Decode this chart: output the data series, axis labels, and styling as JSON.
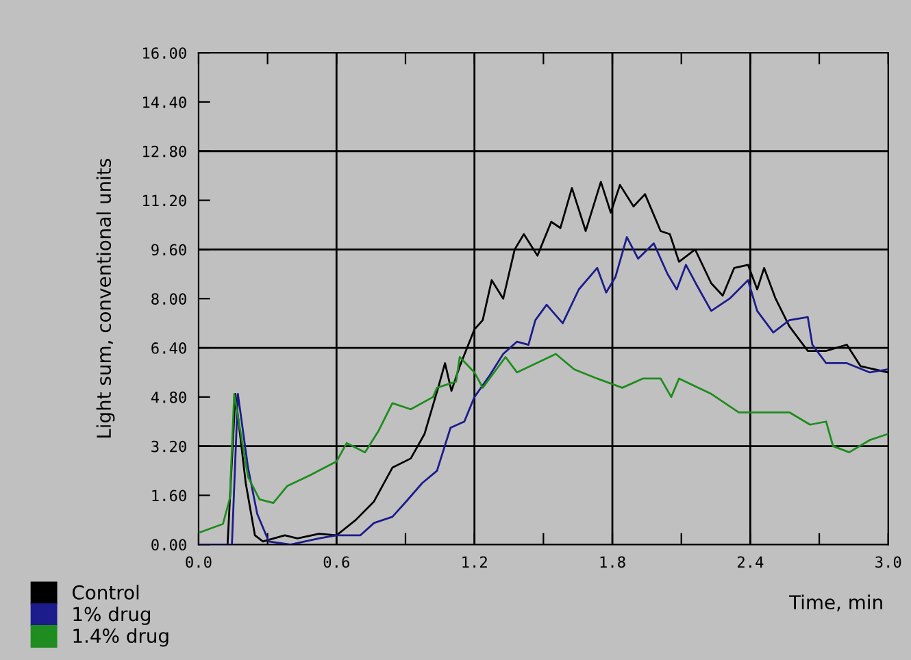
{
  "chart_data": {
    "type": "line",
    "xlabel": "Time, min",
    "ylabel": "Light sum, conventional units",
    "xlim": [
      0,
      3
    ],
    "ylim": [
      0,
      16
    ],
    "xticks": [
      {
        "value": 0,
        "label": "0.0"
      },
      {
        "value": 0.3,
        "label": null
      },
      {
        "value": 0.6,
        "label": "0.6"
      },
      {
        "value": 0.9,
        "label": null
      },
      {
        "value": 1.2,
        "label": "1.2"
      },
      {
        "value": 1.5,
        "label": null
      },
      {
        "value": 1.8,
        "label": "1.8"
      },
      {
        "value": 2.1,
        "label": null
      },
      {
        "value": 2.4,
        "label": "2.4"
      },
      {
        "value": 2.7,
        "label": null
      },
      {
        "value": 3.0,
        "label": "3.0"
      }
    ],
    "yticks": [
      {
        "value": 0,
        "label": "0.00"
      },
      {
        "value": 1.6,
        "label": "1.60"
      },
      {
        "value": 3.2,
        "label": "3.20"
      },
      {
        "value": 4.8,
        "label": "4.80"
      },
      {
        "value": 6.4,
        "label": "6.40"
      },
      {
        "value": 8.0,
        "label": "8.00"
      },
      {
        "value": 9.6,
        "label": "9.60"
      },
      {
        "value": 11.2,
        "label": "11.20"
      },
      {
        "value": 12.8,
        "label": "12.80"
      },
      {
        "value": 14.4,
        "label": "14.40"
      },
      {
        "value": 16.0,
        "label": "16.00"
      }
    ],
    "ref_lines": [
      {
        "axis": "x",
        "value": 0.6,
        "color": "#000000"
      },
      {
        "axis": "x",
        "value": 1.2,
        "color": "#000000"
      },
      {
        "axis": "x",
        "value": 1.8,
        "color": "#000000"
      },
      {
        "axis": "x",
        "value": 2.4,
        "color": "#000000"
      },
      {
        "axis": "y",
        "value": 3.2,
        "color": "#000000"
      },
      {
        "axis": "y",
        "value": 6.4,
        "color": "#000000"
      },
      {
        "axis": "y",
        "value": 9.6,
        "color": "#000000"
      },
      {
        "axis": "y",
        "value": 12.8,
        "color": "#000000"
      }
    ],
    "legend": "bottom left",
    "grid": false,
    "marker": "none",
    "line_style": "solid",
    "series": [
      {
        "name": "Control",
        "color": "#000000",
        "x": [
          0,
          0.126,
          0.16,
          0.205,
          0.245,
          0.28,
          0.375,
          0.43,
          0.524,
          0.6,
          0.684,
          0.763,
          0.843,
          0.923,
          0.983,
          1.042,
          1.072,
          1.1,
          1.136,
          1.2,
          1.236,
          1.275,
          1.325,
          1.375,
          1.415,
          1.474,
          1.534,
          1.574,
          1.624,
          1.684,
          1.75,
          1.793,
          1.833,
          1.892,
          1.942,
          2.01,
          2.05,
          2.09,
          2.16,
          2.23,
          2.28,
          2.33,
          2.39,
          2.43,
          2.46,
          2.51,
          2.57,
          2.65,
          2.73,
          2.82,
          2.88,
          3.0
        ],
        "values": [
          0,
          0,
          4.9,
          2.0,
          0.3,
          0.1,
          0.3,
          0.2,
          0.35,
          0.3,
          0.8,
          1.4,
          2.5,
          2.8,
          3.6,
          5.1,
          5.9,
          5.0,
          5.8,
          7.0,
          7.3,
          8.6,
          8.0,
          9.6,
          10.1,
          9.4,
          10.5,
          10.3,
          11.6,
          10.2,
          11.8,
          10.8,
          11.7,
          11.0,
          11.4,
          10.2,
          10.1,
          9.2,
          9.6,
          8.5,
          8.1,
          9.0,
          9.1,
          8.3,
          9.0,
          8.0,
          7.1,
          6.3,
          6.3,
          6.5,
          5.8,
          5.6
        ]
      },
      {
        "name": "1% drug",
        "color": "#1c1c8c",
        "x": [
          0,
          0.145,
          0.171,
          0.215,
          0.255,
          0.305,
          0.4,
          0.524,
          0.6,
          0.704,
          0.763,
          0.843,
          0.903,
          0.973,
          1.037,
          1.096,
          1.156,
          1.2,
          1.266,
          1.325,
          1.385,
          1.435,
          1.465,
          1.514,
          1.584,
          1.654,
          1.734,
          1.773,
          1.813,
          1.863,
          1.912,
          1.98,
          2.04,
          2.08,
          2.12,
          2.17,
          2.23,
          2.31,
          2.39,
          2.43,
          2.5,
          2.57,
          2.65,
          2.67,
          2.73,
          2.82,
          2.92,
          3.0
        ],
        "values": [
          0,
          0,
          4.9,
          2.5,
          1.0,
          0.1,
          0.0,
          0.2,
          0.3,
          0.3,
          0.7,
          0.9,
          1.4,
          2.0,
          2.4,
          3.8,
          4.0,
          4.8,
          5.5,
          6.2,
          6.6,
          6.5,
          7.3,
          7.8,
          7.2,
          8.3,
          9.0,
          8.2,
          8.7,
          10.0,
          9.3,
          9.8,
          8.8,
          8.3,
          9.1,
          8.4,
          7.6,
          8.0,
          8.6,
          7.6,
          6.9,
          7.3,
          7.4,
          6.5,
          5.9,
          5.9,
          5.6,
          5.7
        ]
      },
      {
        "name": "1.4% drug",
        "color": "#1e8c1e",
        "x": [
          0,
          0.106,
          0.136,
          0.155,
          0.215,
          0.265,
          0.325,
          0.385,
          0.484,
          0.6,
          0.644,
          0.724,
          0.783,
          0.843,
          0.923,
          1.02,
          1.037,
          1.12,
          1.136,
          1.2,
          1.236,
          1.335,
          1.385,
          1.554,
          1.634,
          1.734,
          1.843,
          1.932,
          2.01,
          2.056,
          2.09,
          2.23,
          2.35,
          2.43,
          2.57,
          2.66,
          2.73,
          2.76,
          2.83,
          2.92,
          3.0
        ],
        "values": [
          0.38,
          0.67,
          1.5,
          4.9,
          2.2,
          1.47,
          1.35,
          1.9,
          2.25,
          2.7,
          3.3,
          3.0,
          3.7,
          4.6,
          4.4,
          4.8,
          5.1,
          5.3,
          6.1,
          5.6,
          5.1,
          6.1,
          5.6,
          6.2,
          5.7,
          5.4,
          5.1,
          5.4,
          5.4,
          4.8,
          5.4,
          4.9,
          4.3,
          4.3,
          4.3,
          3.9,
          4.0,
          3.2,
          3.0,
          3.4,
          3.6
        ]
      }
    ]
  }
}
